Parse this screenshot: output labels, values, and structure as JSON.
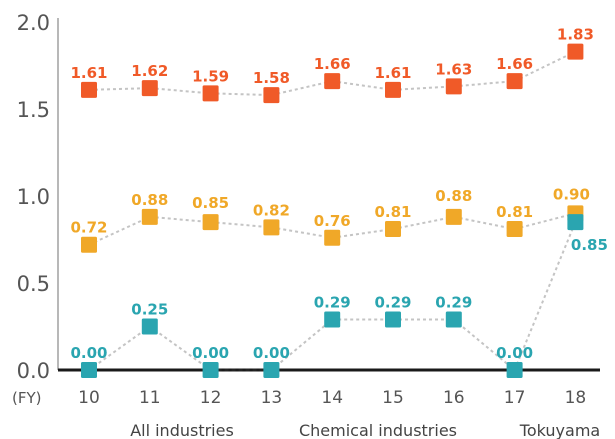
{
  "chart_data": {
    "type": "line",
    "x_unit": "(FY)",
    "categories": [
      "10",
      "11",
      "12",
      "13",
      "14",
      "15",
      "16",
      "17",
      "18"
    ],
    "ylim": [
      0,
      2.0
    ],
    "yticks": [
      "2.0",
      "1.5",
      "1.0",
      "0.5",
      "0.0"
    ],
    "ytick_values": [
      2.0,
      1.5,
      1.0,
      0.5,
      0.0
    ],
    "series": [
      {
        "name": "All industries",
        "color": "#f05a28",
        "values": [
          1.61,
          1.62,
          1.59,
          1.58,
          1.66,
          1.61,
          1.63,
          1.66,
          1.83
        ],
        "labels": [
          "1.61",
          "1.62",
          "1.59",
          "1.58",
          "1.66",
          "1.61",
          "1.63",
          "1.66",
          "1.83"
        ]
      },
      {
        "name": "Chemical industries",
        "color": "#f0a828",
        "values": [
          0.72,
          0.88,
          0.85,
          0.82,
          0.76,
          0.81,
          0.88,
          0.81,
          0.9
        ],
        "labels": [
          "0.72",
          "0.88",
          "0.85",
          "0.82",
          "0.76",
          "0.81",
          "0.88",
          "0.81",
          "0.90"
        ]
      },
      {
        "name": "Tokuyama",
        "color": "#2aa5b0",
        "values": [
          0.0,
          0.25,
          0.0,
          0.0,
          0.29,
          0.29,
          0.29,
          0.0,
          0.85
        ],
        "labels": [
          "0.00",
          "0.25",
          "0.00",
          "0.00",
          "0.29",
          "0.29",
          "0.29",
          "0.00",
          "0.85"
        ]
      }
    ],
    "grid": false
  }
}
